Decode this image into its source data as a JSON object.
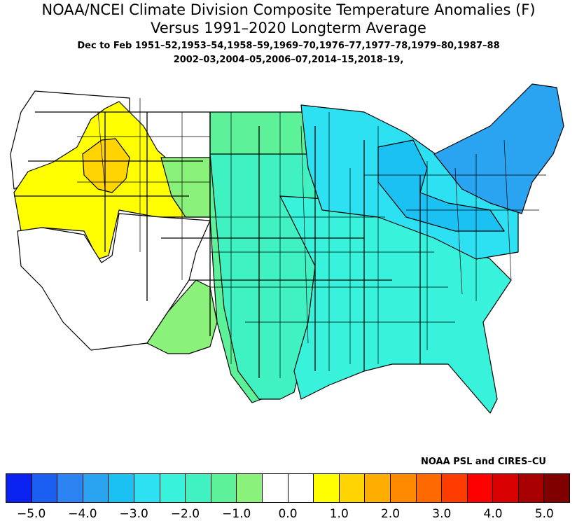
{
  "title": {
    "line1": "NOAA/NCEI Climate Division Composite Temperature Anomalies (F)",
    "line2": "Versus 1991–2020 Longterm Average",
    "line3": "Dec to Feb  1951–52,1953–54,1958–59,1969–70,1976–77,1977–78,1979–80,1987–88",
    "line4": "2002–03,2004–05,2006–07,2014–15,2018–19,"
  },
  "credit": "NOAA PSL and CIRES–CU",
  "colorbar": {
    "colors": [
      "#0a22f0",
      "#1a5ff2",
      "#2b84f2",
      "#2aa3f0",
      "#1bc1f2",
      "#2de0f2",
      "#38f2dc",
      "#40f2c2",
      "#5df29a",
      "#8af27a",
      "#ffffff",
      "#ffffff",
      "#ffff00",
      "#ffd400",
      "#ffae00",
      "#ff8a00",
      "#ff6a00",
      "#ff3c00",
      "#ff0000",
      "#d80000",
      "#a80000",
      "#800000"
    ],
    "labels": [
      "−5.0",
      "−4.0",
      "−3.0",
      "−2.0",
      "−1.0",
      "0.0",
      "1.0",
      "2.0",
      "3.0",
      "4.0",
      "5.0"
    ]
  },
  "regions": [
    {
      "name": "pacific-northwest",
      "color": "#ffffff"
    },
    {
      "name": "great-basin-northern-rockies",
      "color": "#ffff00"
    },
    {
      "name": "central-idaho-montana",
      "color": "#ffd400"
    },
    {
      "name": "california-nevada-southwest",
      "color": "#ffffff"
    },
    {
      "name": "colorado-front-range",
      "color": "#8af27a"
    },
    {
      "name": "arizona-new-mexico",
      "color": "#8af27a"
    },
    {
      "name": "northern-plains-texas",
      "color": "#5df29a"
    },
    {
      "name": "central-plains-south",
      "color": "#40f2c2"
    },
    {
      "name": "midwest-southeast",
      "color": "#38f2dc"
    },
    {
      "name": "great-lakes-ohio-valley",
      "color": "#2de0f2"
    },
    {
      "name": "northeast",
      "color": "#2aa3f0"
    },
    {
      "name": "michigan-pennsylvania",
      "color": "#1bc1f2"
    }
  ]
}
